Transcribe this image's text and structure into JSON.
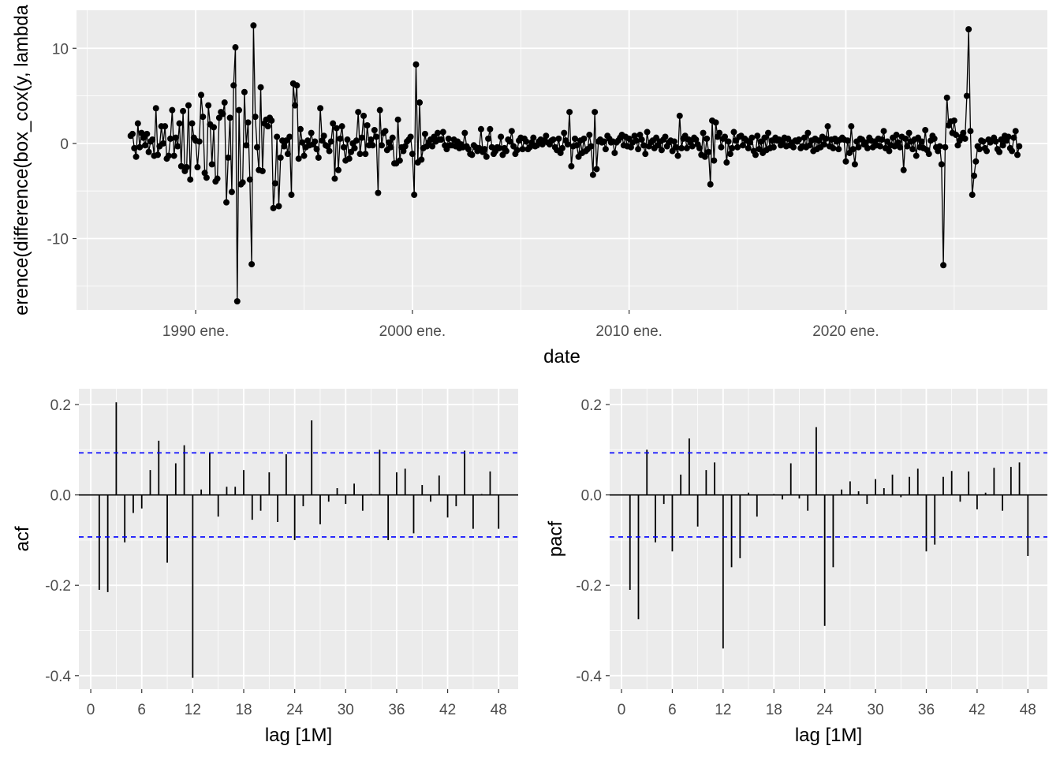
{
  "colors": {
    "panel": "#ebebeb",
    "grid_major": "#ffffff",
    "line": "#000000",
    "ci": "#0000ff"
  },
  "chart_data": [
    {
      "id": "ts",
      "type": "line",
      "xlabel": "date",
      "ylabel": "erence(difference(box_cox(y, lambda",
      "xlim": [
        1984.5,
        2029.3
      ],
      "ylim": [
        -17.5,
        14.0
      ],
      "x_ticks": [
        1990,
        2000,
        2010,
        2020
      ],
      "x_tick_labels": [
        "1990 ene.",
        "2000 ene.",
        "2010 ene.",
        "2020 ene."
      ],
      "y_ticks": [
        -10,
        0,
        10
      ],
      "y_tick_labels": [
        "-10",
        "0",
        "10"
      ],
      "x_start": 1987.0,
      "x_step": 0.0833333,
      "values": [
        0.8,
        1,
        -0.5,
        -1.4,
        2.1,
        -0.4,
        1.1,
        0.6,
        -0.2,
        1,
        -0.9,
        0.2,
        0.4,
        -1.3,
        3.7,
        -1.2,
        -0.3,
        1.8,
        0,
        1.8,
        -1.6,
        -1.3,
        0.5,
        3.5,
        -1.3,
        0.6,
        -0.3,
        2.1,
        -2.4,
        3.4,
        -2.9,
        -2.5,
        4,
        -3.8,
        2.1,
        0.6,
        0.3,
        -2.5,
        0.2,
        5.1,
        2.8,
        -3.1,
        -3.6,
        4,
        2,
        -2.2,
        1.7,
        -4.0,
        -3.7,
        2.7,
        3.3,
        3.1,
        4.3,
        -6.2,
        -1.5,
        2.7,
        -5.1,
        6.1,
        10.1,
        -16.6,
        3.5,
        -4.3,
        -4.1,
        5.4,
        -0.2,
        2.2,
        -3.8,
        -12.7,
        12.4,
        2.8,
        -0.4,
        -2.8,
        5.9,
        -2.9,
        2.1,
        2.5,
        1.8,
        2.7,
        2.4,
        -6.8,
        -4.2,
        0.7,
        -6.6,
        -1.5,
        0.3,
        -0.3,
        0.3,
        -1.1,
        0.7,
        -5.4,
        6.3,
        4,
        6.1,
        -1.6,
        1.5,
        0.1,
        -1.3,
        -0.4,
        0.3,
        -0.2,
        1.1,
        -0.1,
        0.2,
        -0.6,
        -1.5,
        3.7,
        0.3,
        0.8,
        -0.2,
        -0.3,
        -0.8,
        0.2,
        2.1,
        -3.7,
        1.6,
        -2.8,
        0.5,
        1.8,
        -0.4,
        -1.8,
        0.4,
        -1.6,
        -0.9,
        0,
        -0.5,
        0.3,
        3.3,
        -1.1,
        0.6,
        2.9,
        -1.1,
        1.9,
        -0.2,
        0.4,
        -0.2,
        1.4,
        0.7,
        -5.2,
        3.5,
        -0.2,
        1.1,
        1.3,
        -0.7,
        0.1,
        -0.4,
        0.6,
        -2.1,
        -2.1,
        2.5,
        -1.8,
        -0.4,
        -0.8,
        -0.3,
        0.2,
        0.4,
        0.7,
        -1.1,
        -5.4,
        8.3,
        -2,
        4.3,
        -1.7,
        -0.5,
        1,
        -0.3,
        0.1,
        0.4,
        -0.3,
        0.7,
        0.2,
        1.1,
        0.4,
        0.4,
        1.2,
        -0.2,
        -0.6,
        0.5,
        -0.2,
        -0.2,
        0.4,
        -0.3,
        0.2,
        -0.5,
        -0.1,
        -0.4,
        1.1,
        -0.3,
        -0.6,
        -1.1,
        -1.2,
        -0.2,
        -0.4,
        -0.8,
        -0.5,
        1.5,
        -0.9,
        -0.6,
        -1.4,
        0.5,
        1.5,
        -0.4,
        -1.1,
        -0.8,
        -0.4,
        -0.5,
        0.7,
        -1.2,
        -0.5,
        -0.8,
        0.4,
        0.2,
        1.3,
        -0.3,
        -1.1,
        -0.7,
        0.3,
        0.6,
        -0.6,
        0.5,
        0.2,
        -0.6,
        -0.4,
        0.1,
        0.6,
        -0.3,
        -0.2,
        0.2,
        0.4,
        -0.1,
        0.3,
        0.8,
        0.1,
        -0.1,
        0.3,
        0.4,
        -0.4,
        -0.7,
        0.5,
        -1,
        -0.5,
        1.1,
        0.3,
        -0.1,
        3.3,
        -2.4,
        -0.3,
        0.5,
        -0.2,
        -1.4,
        0.3,
        -1,
        0.5,
        -0.8,
        -0.6,
        0.9,
        -0.3,
        -3.3,
        3.3,
        -2.7,
        0.2,
        0.4,
        0.1,
        0.2,
        -0.6,
        0.8,
        0.5,
        0.1,
        0.2,
        -1,
        0.1,
        0.3,
        0.6,
        0.9,
        -0.2,
        0.7,
        -0.3,
        0.5,
        -0.4,
        0.1,
        0.8,
        0.3,
        -0.6,
        0.9,
        0.4,
        -0.2,
        -1.1,
        1.2,
        -0.3,
        0.1,
        0.3,
        -0.5,
        0.6,
        -0.2,
        0.2,
        -0.7,
        0.4,
        0.7,
        -0.3,
        0.1,
        0.3,
        -0.8,
        0.2,
        -0.4,
        -1.3,
        2.9,
        -0.5,
        0.5,
        0.8,
        -0.5,
        0.4,
        0.1,
        -0.3,
        0.6,
        0.4,
        -0.1,
        -0.5,
        -1.2,
        1.1,
        -1.4,
        0.5,
        -0.9,
        -4.3,
        2.4,
        -1.8,
        2.2,
        0.7,
        1.1,
        -0.4,
        0.5,
        0.7,
        -2,
        0.2,
        -1.1,
        -0.5,
        1.2,
        0.3,
        -0.4,
        0.7,
        0.8,
        -0.2,
        0.5,
        0.3,
        -0.5,
        0.1,
        0.6,
        -0.8,
        -1.2,
        0.8,
        -0.6,
        0.2,
        -1,
        0.6,
        -0.7,
        1.1,
        -0.5,
        0.3,
        -0.4,
        0.6,
        0.3,
        0.4,
        -0.2,
        0.2,
        0.6,
        -0.3,
        0.5,
        -0.2,
        0.1,
        -0.4,
        0.3,
        0.2,
        0.4,
        -0.5,
        -0.3,
        0.6,
        -0.4,
        1.1,
        -0.2,
        0.3,
        -0.8,
        0.5,
        -0.6,
        0.3,
        -0.4,
        0.7,
        -0.1,
        0.5,
        1.8,
        -0.3,
        0.4,
        -0.5,
        0.5,
        0.2,
        -0.6,
        0.4,
        0.6,
        0.4,
        -1.9,
        0.3,
        -1,
        1.8,
        -0.6,
        -2.2,
        0.2,
        -0.4,
        0.5,
        0.4,
        -0.1,
        0.1,
        -0.5,
        0.6,
        0.3,
        -0.4,
        0.2,
        -0.2,
        0.5,
        -0.3,
        0.4,
        1.3,
        -0.5,
        0.2,
        -0.8,
        -0.2,
        0.6,
        -0.3,
        0.9,
        0.1,
        -0.4,
        0.7,
        -2.8,
        0.5,
        -0.3,
        1.1,
        0.2,
        -0.6,
        0.4,
        -1.3,
        0.6,
        -0.4,
        0.2,
        -0.5,
        1.4,
        -0.7,
        -1.1,
        0.3,
        0.8,
        0.5,
        -0.4,
        -0.8,
        -0.3,
        -2.2,
        -12.8,
        -0.4,
        4.8,
        1.9,
        2.3,
        1.1,
        2.4,
        0.9,
        -0.2,
        0.3,
        0.7,
        1.1,
        0.5,
        5,
        12,
        1.3,
        -5.4,
        -3.4,
        -1.9,
        -0.3,
        -0.6,
        0.3,
        0.2,
        -0.5,
        -0.8,
        0.4,
        0.1,
        0.3,
        0.6,
        0.2,
        -0.6,
        -0.9,
        0.4,
        -0.2,
        0.8,
        0.3,
        0.7,
        -0.5,
        -0.8,
        0.6,
        1.3,
        -1.2,
        -0.3
      ]
    },
    {
      "id": "acf",
      "type": "bar",
      "xlabel": "lag [1M]",
      "ylabel": "acf",
      "xlim": [
        -1.4,
        50.3
      ],
      "ylim": [
        -0.43,
        0.235
      ],
      "x_ticks": [
        0,
        6,
        12,
        18,
        24,
        30,
        36,
        42,
        48
      ],
      "x_tick_labels": [
        "0",
        "6",
        "12",
        "18",
        "24",
        "30",
        "36",
        "42",
        "48"
      ],
      "y_ticks": [
        -0.4,
        -0.2,
        0.0,
        0.2
      ],
      "y_tick_labels": [
        "-0.4",
        "-0.2",
        "0.0",
        "0.2"
      ],
      "ci": 0.093,
      "lags": [
        1,
        2,
        3,
        4,
        5,
        6,
        7,
        8,
        9,
        10,
        11,
        12,
        13,
        14,
        15,
        16,
        17,
        18,
        19,
        20,
        21,
        22,
        23,
        24,
        25,
        26,
        27,
        28,
        29,
        30,
        31,
        32,
        33,
        34,
        35,
        36,
        37,
        38,
        39,
        40,
        41,
        42,
        43,
        44,
        45,
        46,
        47,
        48
      ],
      "values": [
        -0.21,
        -0.215,
        0.205,
        -0.105,
        -0.04,
        -0.03,
        0.055,
        0.12,
        -0.15,
        0.07,
        0.11,
        -0.405,
        0.012,
        0.093,
        -0.048,
        0.018,
        0.018,
        0.055,
        -0.055,
        -0.035,
        0.05,
        -0.06,
        0.09,
        -0.1,
        -0.025,
        0.165,
        -0.065,
        -0.015,
        0.015,
        -0.02,
        0.025,
        -0.035,
        0.002,
        0.1,
        -0.1,
        0.05,
        0.058,
        -0.085,
        0.022,
        -0.015,
        0.043,
        -0.05,
        -0.025,
        0.098,
        -0.075,
        0.002,
        0.052,
        -0.075
      ]
    },
    {
      "id": "pacf",
      "type": "bar",
      "xlabel": "lag [1M]",
      "ylabel": "pacf",
      "xlim": [
        -1.4,
        50.3
      ],
      "ylim": [
        -0.43,
        0.235
      ],
      "x_ticks": [
        0,
        6,
        12,
        18,
        24,
        30,
        36,
        42,
        48
      ],
      "x_tick_labels": [
        "0",
        "6",
        "12",
        "18",
        "24",
        "30",
        "36",
        "42",
        "48"
      ],
      "y_ticks": [
        -0.4,
        -0.2,
        0.0,
        0.2
      ],
      "y_tick_labels": [
        "-0.4",
        "-0.2",
        "0.0",
        "0.2"
      ],
      "ci": 0.093,
      "lags": [
        1,
        2,
        3,
        4,
        5,
        6,
        7,
        8,
        9,
        10,
        11,
        12,
        13,
        14,
        15,
        16,
        17,
        18,
        19,
        20,
        21,
        22,
        23,
        24,
        25,
        26,
        27,
        28,
        29,
        30,
        31,
        32,
        33,
        34,
        35,
        36,
        37,
        38,
        39,
        40,
        41,
        42,
        43,
        44,
        45,
        46,
        47,
        48
      ],
      "values": [
        -0.21,
        -0.275,
        0.1,
        -0.105,
        -0.02,
        -0.125,
        0.045,
        0.125,
        -0.07,
        0.055,
        0.072,
        -0.34,
        -0.16,
        -0.14,
        0.005,
        -0.048,
        0.0,
        0.002,
        -0.01,
        0.07,
        -0.008,
        -0.035,
        0.15,
        -0.29,
        -0.16,
        0.012,
        0.03,
        0.008,
        -0.02,
        0.035,
        0.015,
        0.045,
        -0.005,
        0.04,
        0.058,
        -0.125,
        -0.11,
        0.04,
        0.053,
        -0.015,
        0.052,
        -0.032,
        0.005,
        0.06,
        -0.035,
        0.062,
        0.072,
        -0.135
      ]
    }
  ]
}
